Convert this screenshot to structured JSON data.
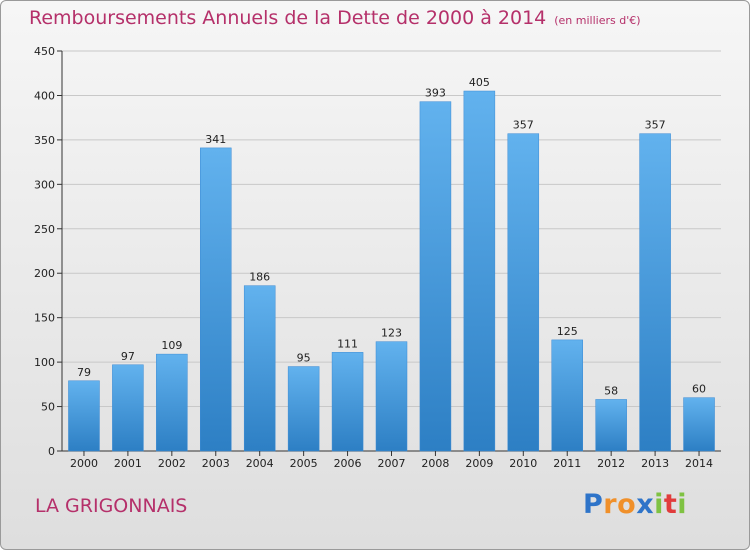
{
  "chart_data": {
    "type": "bar",
    "title": "Remboursements Annuels de la Dette de 2000 à 2014",
    "unit": "(en milliers d'€)",
    "categories": [
      "2000",
      "2001",
      "2002",
      "2003",
      "2004",
      "2005",
      "2006",
      "2007",
      "2008",
      "2009",
      "2010",
      "2011",
      "2012",
      "2013",
      "2014"
    ],
    "values": [
      79,
      97,
      109,
      341,
      186,
      95,
      111,
      123,
      393,
      405,
      357,
      125,
      58,
      357,
      60
    ],
    "data_labels": [
      "79",
      "97",
      "109",
      "341",
      "186",
      "95",
      "111",
      "123",
      "393",
      "405",
      "357",
      "125",
      "58",
      "357",
      "60"
    ],
    "xlabel": "",
    "ylabel": "",
    "ylim": [
      0,
      450
    ],
    "yticks": [
      0,
      50,
      100,
      150,
      200,
      250,
      300,
      350,
      400,
      450
    ],
    "ytick_labels": [
      "0",
      "50",
      "100",
      "150",
      "200",
      "250",
      "300",
      "350",
      "400",
      "450"
    ],
    "grid": true,
    "legend": "none",
    "bar_color": "#4a9ee0"
  },
  "footer": {
    "place": "LA GRIGONNAIS",
    "brand_letters": [
      "P",
      "r",
      "o",
      "x",
      "i",
      "t",
      "i"
    ],
    "brand_colors": [
      "#2e74c9",
      "#f0902a",
      "#f0902a",
      "#2e74c9",
      "#7fc242",
      "#e13c3c",
      "#7fc242"
    ]
  }
}
